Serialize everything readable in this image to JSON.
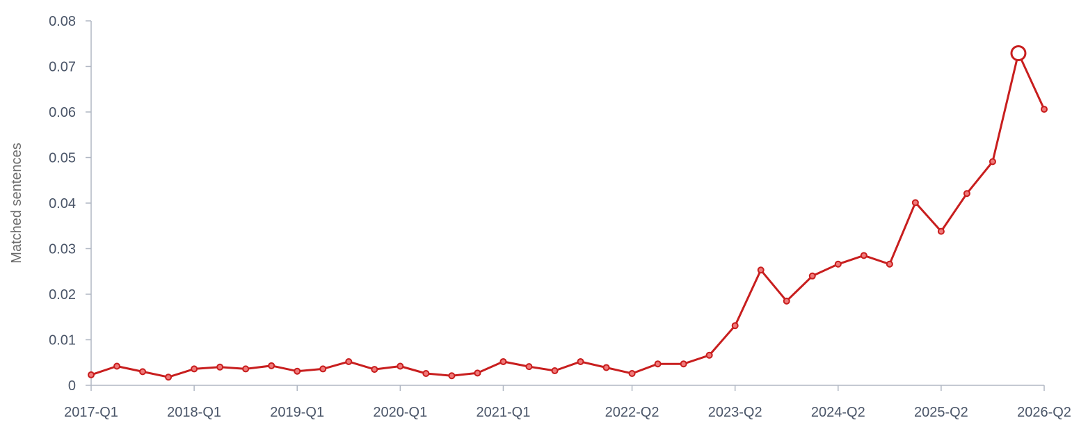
{
  "chart_data": {
    "type": "line",
    "ylabel": "Matched sentences",
    "ylim": [
      0,
      0.08
    ],
    "yticks": [
      "0",
      "0.01",
      "0.02",
      "0.03",
      "0.04",
      "0.05",
      "0.06",
      "0.07",
      "0.08"
    ],
    "xtick_labels": [
      {
        "label": "2017-Q1",
        "index": 0
      },
      {
        "label": "2018-Q1",
        "index": 4
      },
      {
        "label": "2019-Q1",
        "index": 8
      },
      {
        "label": "2020-Q1",
        "index": 12
      },
      {
        "label": "2021-Q1",
        "index": 16
      },
      {
        "label": "2022-Q2",
        "index": 21
      },
      {
        "label": "2023-Q2",
        "index": 25
      },
      {
        "label": "2024-Q2",
        "index": 29
      },
      {
        "label": "2025-Q2",
        "index": 33
      },
      {
        "label": "2026-Q2",
        "index": 37
      }
    ],
    "x": [
      "2017-Q1",
      "2017-Q2",
      "2017-Q3",
      "2017-Q4",
      "2018-Q1",
      "2018-Q2",
      "2018-Q3",
      "2018-Q4",
      "2019-Q1",
      "2019-Q2",
      "2019-Q3",
      "2019-Q4",
      "2020-Q1",
      "2020-Q2",
      "2020-Q3",
      "2020-Q4",
      "2021-Q1",
      "2021-Q2",
      "2021-Q3",
      "2021-Q4",
      "2022-Q1",
      "2022-Q2",
      "2022-Q3",
      "2022-Q4",
      "2023-Q1",
      "2023-Q2",
      "2023-Q3",
      "2023-Q4",
      "2024-Q1",
      "2024-Q2",
      "2024-Q3",
      "2024-Q4",
      "2025-Q1",
      "2025-Q2",
      "2025-Q3",
      "2025-Q4",
      "2026-Q1",
      "2026-Q2"
    ],
    "series": [
      {
        "values": [
          0.0023,
          0.0042,
          0.003,
          0.0018,
          0.0036,
          0.004,
          0.0036,
          0.0043,
          0.0031,
          0.0036,
          0.0052,
          0.0035,
          0.0042,
          0.0026,
          0.0021,
          0.0027,
          0.0052,
          0.0041,
          0.0032,
          0.0052,
          0.0039,
          0.0026,
          0.0047,
          0.0047,
          0.0066,
          0.0131,
          0.0253,
          0.0185,
          0.024,
          0.0266,
          0.0285,
          0.0266,
          0.0401,
          0.0338,
          0.0421,
          0.0491,
          0.0729,
          0.0606
        ],
        "highlight_index": 36
      }
    ],
    "colors": {
      "line": "#c81e1e",
      "axis": "#b0b7c3",
      "tick_text": "#4a5568",
      "title_text": "#6b6b6b"
    }
  }
}
